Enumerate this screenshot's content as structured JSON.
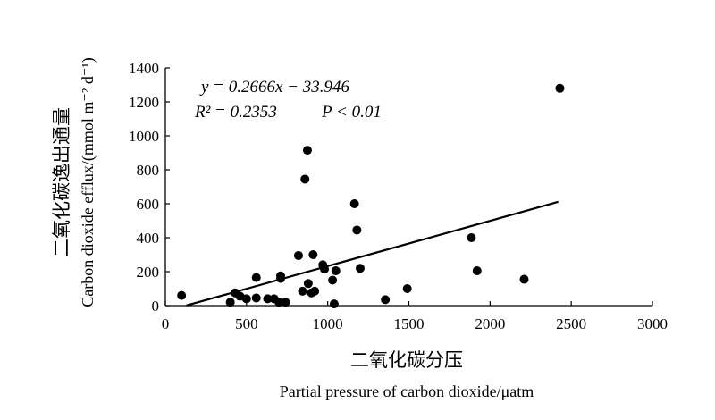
{
  "chart_data": {
    "type": "scatter",
    "xlabel_cn": "二氧化碳分压",
    "xlabel_en": "Partial pressure of carbon dioxide/μatm",
    "ylabel_cn": "二氧化碳逸出通量",
    "ylabel_en": "Carbon dioxide efflux/(mmol m⁻² d⁻¹)",
    "xlim": [
      0,
      3000
    ],
    "ylim": [
      0,
      1400
    ],
    "xticks": [
      "0",
      "500",
      "1000",
      "1500",
      "2000",
      "2500",
      "3000"
    ],
    "yticks": [
      "0",
      "200",
      "400",
      "600",
      "800",
      "1000",
      "1200",
      "1400"
    ],
    "grid": false,
    "equation_text": "y = 0.2666x − 33.946",
    "r2_text": "R² = 0.2353",
    "p_text": "P < 0.01",
    "trendline": {
      "slope": 0.2666,
      "intercept": -33.946,
      "x_start": 130,
      "x_end": 2420
    },
    "points": [
      {
        "x": 100,
        "y": 60
      },
      {
        "x": 400,
        "y": 20
      },
      {
        "x": 430,
        "y": 75
      },
      {
        "x": 460,
        "y": 55
      },
      {
        "x": 500,
        "y": 40
      },
      {
        "x": 560,
        "y": 165
      },
      {
        "x": 560,
        "y": 45
      },
      {
        "x": 630,
        "y": 40
      },
      {
        "x": 670,
        "y": 40
      },
      {
        "x": 700,
        "y": 20
      },
      {
        "x": 710,
        "y": 160
      },
      {
        "x": 710,
        "y": 175
      },
      {
        "x": 740,
        "y": 20
      },
      {
        "x": 820,
        "y": 295
      },
      {
        "x": 845,
        "y": 85
      },
      {
        "x": 860,
        "y": 745
      },
      {
        "x": 875,
        "y": 915
      },
      {
        "x": 880,
        "y": 130
      },
      {
        "x": 900,
        "y": 75
      },
      {
        "x": 910,
        "y": 300
      },
      {
        "x": 920,
        "y": 85
      },
      {
        "x": 970,
        "y": 240
      },
      {
        "x": 980,
        "y": 215
      },
      {
        "x": 1030,
        "y": 150
      },
      {
        "x": 1040,
        "y": 10
      },
      {
        "x": 1050,
        "y": 205
      },
      {
        "x": 1165,
        "y": 600
      },
      {
        "x": 1180,
        "y": 445
      },
      {
        "x": 1200,
        "y": 220
      },
      {
        "x": 1355,
        "y": 35
      },
      {
        "x": 1490,
        "y": 100
      },
      {
        "x": 1885,
        "y": 400
      },
      {
        "x": 1920,
        "y": 205
      },
      {
        "x": 2210,
        "y": 155
      },
      {
        "x": 2430,
        "y": 1280
      }
    ]
  }
}
